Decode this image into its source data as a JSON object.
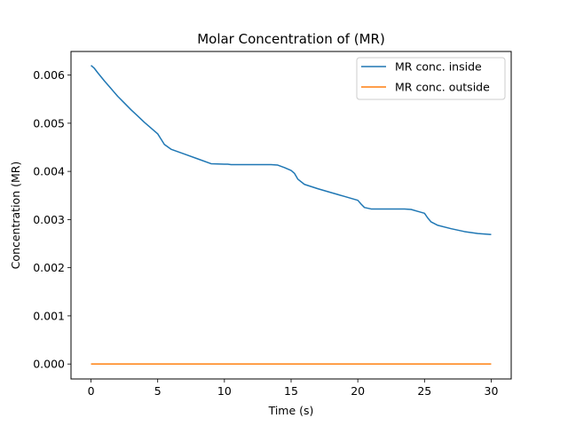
{
  "chart_data": {
    "type": "line",
    "title": "Molar Concentration of (MR)",
    "xlabel": "Time (s)",
    "ylabel": "Concentration (MR)",
    "xlim": [
      -1.5,
      31.5
    ],
    "ylim": [
      -0.00031,
      0.00649
    ],
    "xticks": [
      0,
      5,
      10,
      15,
      20,
      25,
      30
    ],
    "xtick_labels": [
      "0",
      "5",
      "10",
      "15",
      "20",
      "25",
      "30"
    ],
    "yticks": [
      0,
      0.001,
      0.002,
      0.003,
      0.004,
      0.005,
      0.006
    ],
    "ytick_labels": [
      "0.000",
      "0.001",
      "0.002",
      "0.003",
      "0.004",
      "0.005",
      "0.006"
    ],
    "grid": false,
    "legend": "top-right",
    "series": [
      {
        "name": "MR conc. inside",
        "color": "#1f77b4",
        "x": [
          0,
          0.25,
          0.5,
          1,
          1.5,
          2,
          2.5,
          3,
          3.5,
          4,
          4.5,
          5,
          5.25,
          5.5,
          6,
          7,
          8,
          9,
          10,
          10.25,
          10.5,
          11,
          11.5,
          12,
          12.5,
          13,
          13.5,
          14,
          14.5,
          15,
          15.25,
          15.5,
          16,
          17,
          18,
          19,
          20,
          20.25,
          20.5,
          21,
          21.5,
          22,
          22.5,
          23,
          23.5,
          24,
          24.5,
          25,
          25.25,
          25.5,
          26,
          27,
          28,
          29,
          30
        ],
        "y": [
          0.0062,
          0.00614,
          0.00605,
          0.00588,
          0.00572,
          0.00556,
          0.00542,
          0.00528,
          0.00515,
          0.00502,
          0.0049,
          0.00478,
          0.00467,
          0.00456,
          0.00446,
          0.00436,
          0.00426,
          0.00416,
          0.00415,
          0.00415,
          0.00414,
          0.00414,
          0.00414,
          0.00414,
          0.00414,
          0.00414,
          0.00414,
          0.00413,
          0.00408,
          0.00402,
          0.00396,
          0.00384,
          0.00373,
          0.00364,
          0.00356,
          0.00348,
          0.0034,
          0.00332,
          0.00325,
          0.00322,
          0.00322,
          0.00322,
          0.00322,
          0.00322,
          0.00322,
          0.00321,
          0.00317,
          0.00313,
          0.00303,
          0.00295,
          0.00288,
          0.00281,
          0.00275,
          0.00271,
          0.00269
        ]
      },
      {
        "name": "MR conc. outside",
        "color": "#ff7f0e",
        "x": [
          0,
          30
        ],
        "y": [
          0,
          0
        ]
      }
    ]
  }
}
